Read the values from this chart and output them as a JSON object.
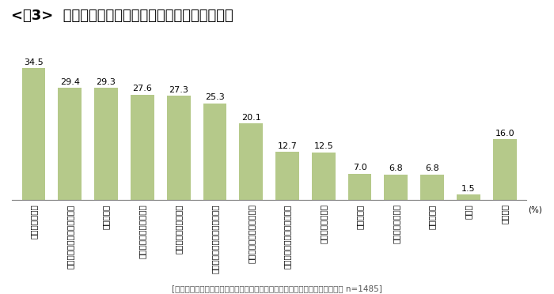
{
  "title": "<図3>  地方移住・二拠点居住実行の不安点・課題点",
  "categories": [
    "働き先が少ない",
    "買い物など日常生活の快適さ",
    "賃金が安い",
    "移住先の人間関係の構築",
    "公共交通機関の利便性",
    "医療・介護・福祉施設の充実度",
    "移住先の文化や風習の違い",
    "レジャー・娯楽施設の充実度",
    "災害対策の充実度",
    "子育て環境",
    "教育環境の充実度",
    "家族の反対",
    "その他",
    "特にない"
  ],
  "values": [
    34.5,
    29.4,
    29.3,
    27.6,
    27.3,
    25.3,
    20.1,
    12.7,
    12.5,
    7.0,
    6.8,
    6.8,
    1.5,
    16.0
  ],
  "bar_color": "#b5c98a",
  "footnote": "[地方移住・二拠点居住に関心がある・検討している・既に実行した人ベース n=1485]",
  "ylim": [
    0,
    40
  ],
  "title_fontsize": 13,
  "value_fontsize": 8,
  "label_fontsize": 7.5,
  "footnote_fontsize": 7.5
}
